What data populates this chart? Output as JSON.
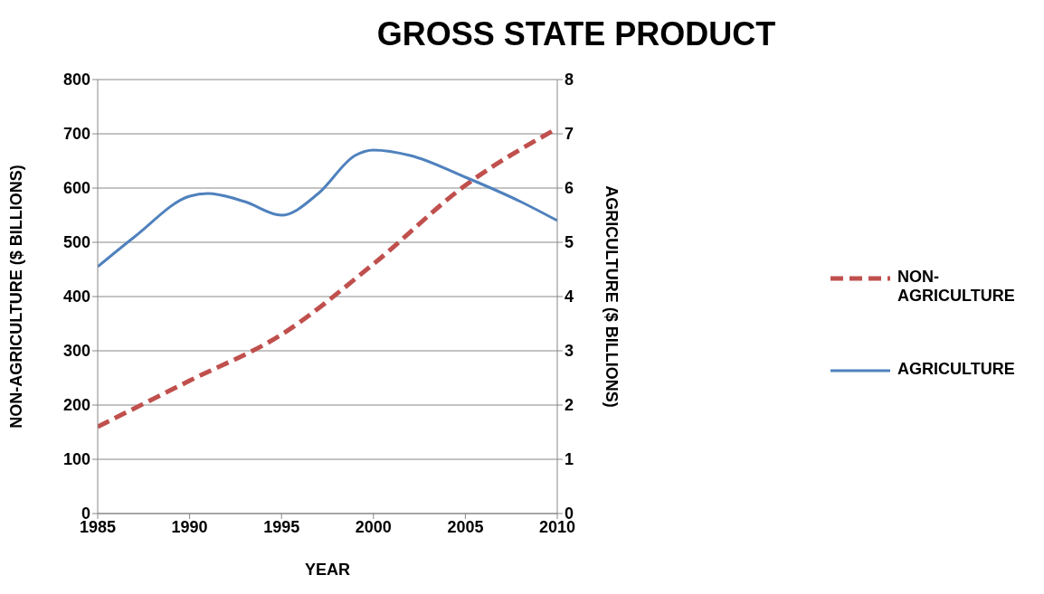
{
  "chart_data": {
    "type": "line",
    "title": "GROSS STATE PRODUCT",
    "xlabel": "YEAR",
    "ylabel": "NON-AGRICULTURE ($ BILLIONS)",
    "y2label": "AGRICULTURE ($ BILLIONS)",
    "xlim": [
      1985,
      2010
    ],
    "xticks": [
      1985,
      1990,
      1995,
      2000,
      2005,
      2010
    ],
    "ylim": [
      0,
      800
    ],
    "yticks": [
      0,
      100,
      200,
      300,
      400,
      500,
      600,
      700,
      800
    ],
    "y2lim": [
      0,
      8
    ],
    "y2ticks": [
      0,
      1,
      2,
      3,
      4,
      5,
      6,
      7,
      8
    ],
    "grid": "y",
    "legend": "right",
    "marker": "none",
    "series": [
      {
        "name": "NON-AGRICULTURE",
        "color": "#c0504d",
        "line_style": "dashed",
        "x": [
          1985,
          1990,
          1995,
          2000,
          2005,
          2010
        ],
        "values": [
          160,
          245,
          330,
          460,
          605,
          710
        ]
      },
      {
        "name": "AGRICULTURE",
        "color": "#4f81bd",
        "line_style": "solid",
        "axis": "y2",
        "x": [
          1985,
          1987,
          1990,
          1991,
          1993,
          1995,
          1997,
          1999,
          2000,
          2002,
          2005,
          2008,
          2010
        ],
        "values": [
          4.55,
          5.1,
          5.85,
          5.9,
          5.75,
          5.5,
          5.9,
          6.6,
          6.7,
          6.6,
          6.2,
          5.75,
          5.4
        ]
      }
    ]
  }
}
